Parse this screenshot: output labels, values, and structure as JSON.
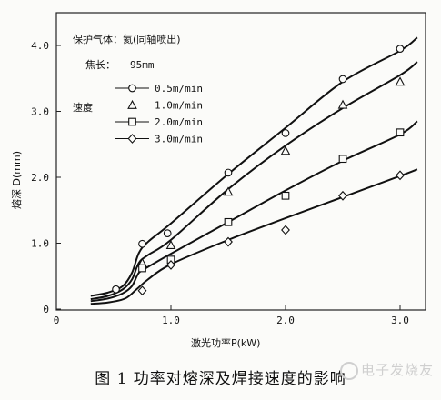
{
  "chart_data": {
    "type": "line",
    "xlabel": "激光功率P(kW)",
    "ylabel": "熔深 D(mm)",
    "xlim": [
      0,
      3.2
    ],
    "ylim": [
      0,
      4.3
    ],
    "xticks": [
      0,
      1.0,
      2.0,
      3.0
    ],
    "xtick_labels": [
      "0",
      "1.0",
      "2.0",
      "3.0"
    ],
    "yticks": [
      0,
      1.0,
      2.0,
      3.0,
      4.0
    ],
    "ytick_labels": [
      "0",
      "1.0",
      "2.0",
      "3.0",
      "4.0"
    ],
    "grid": false,
    "legend_placement": "top-left",
    "annotations": {
      "gas_label": "保护气体：氦(同轴喷出)",
      "focal_label": "焦长：",
      "focal_value": "95mm",
      "speed_label": "速度"
    },
    "series": [
      {
        "name": "0.5m/min",
        "marker": "circle",
        "points": [
          [
            0.52,
            0.3
          ],
          [
            0.75,
            0.99
          ],
          [
            0.97,
            1.15
          ],
          [
            1.5,
            2.07
          ],
          [
            2.0,
            2.67
          ],
          [
            2.5,
            3.49
          ],
          [
            3.0,
            3.95
          ]
        ],
        "curve": [
          [
            0.3,
            0.2
          ],
          [
            0.45,
            0.25
          ],
          [
            0.58,
            0.35
          ],
          [
            0.66,
            0.55
          ],
          [
            0.72,
            0.85
          ],
          [
            0.8,
            1.02
          ],
          [
            1.0,
            1.3
          ],
          [
            1.5,
            2.05
          ],
          [
            2.0,
            2.75
          ],
          [
            2.5,
            3.45
          ],
          [
            3.0,
            3.92
          ],
          [
            3.15,
            4.12
          ]
        ]
      },
      {
        "name": "1.0m/min",
        "marker": "triangle",
        "points": [
          [
            0.75,
            0.7
          ],
          [
            1.0,
            0.97
          ],
          [
            1.5,
            1.78
          ],
          [
            2.0,
            2.4
          ],
          [
            2.5,
            3.1
          ],
          [
            3.0,
            3.45
          ]
        ],
        "curve": [
          [
            0.3,
            0.15
          ],
          [
            0.45,
            0.2
          ],
          [
            0.58,
            0.3
          ],
          [
            0.66,
            0.45
          ],
          [
            0.72,
            0.7
          ],
          [
            0.8,
            0.82
          ],
          [
            1.0,
            1.05
          ],
          [
            1.5,
            1.82
          ],
          [
            2.0,
            2.48
          ],
          [
            2.5,
            3.05
          ],
          [
            3.0,
            3.55
          ],
          [
            3.15,
            3.75
          ]
        ]
      },
      {
        "name": "2.0m/min",
        "marker": "square",
        "points": [
          [
            0.75,
            0.62
          ],
          [
            1.0,
            0.75
          ],
          [
            1.5,
            1.32
          ],
          [
            2.0,
            1.72
          ],
          [
            2.5,
            2.28
          ],
          [
            3.0,
            2.68
          ]
        ],
        "curve": [
          [
            0.3,
            0.12
          ],
          [
            0.45,
            0.16
          ],
          [
            0.58,
            0.24
          ],
          [
            0.66,
            0.35
          ],
          [
            0.72,
            0.55
          ],
          [
            0.8,
            0.64
          ],
          [
            1.0,
            0.84
          ],
          [
            1.5,
            1.32
          ],
          [
            2.0,
            1.8
          ],
          [
            2.5,
            2.25
          ],
          [
            3.0,
            2.65
          ],
          [
            3.15,
            2.85
          ]
        ]
      },
      {
        "name": "3.0m/min",
        "marker": "diamond",
        "points": [
          [
            0.75,
            0.28
          ],
          [
            1.0,
            0.67
          ],
          [
            1.5,
            1.02
          ],
          [
            2.0,
            1.2
          ],
          [
            2.5,
            1.72
          ],
          [
            3.0,
            2.03
          ]
        ],
        "curve": [
          [
            0.3,
            0.08
          ],
          [
            0.45,
            0.1
          ],
          [
            0.6,
            0.16
          ],
          [
            0.7,
            0.3
          ],
          [
            0.8,
            0.45
          ],
          [
            1.0,
            0.68
          ],
          [
            1.5,
            1.05
          ],
          [
            2.0,
            1.38
          ],
          [
            2.5,
            1.7
          ],
          [
            3.0,
            2.02
          ],
          [
            3.15,
            2.12
          ]
        ]
      }
    ]
  },
  "caption": "图 1  功率对熔深及焊接速度的影响",
  "watermark": "电子发烧友"
}
